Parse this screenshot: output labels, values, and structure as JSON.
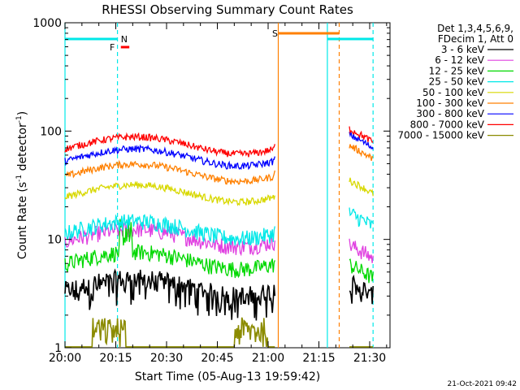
{
  "chart_data": {
    "type": "line",
    "title": "RHESSI Observing Summary Count Rates",
    "xlabel": "Start Time (05-Aug-13 19:59:42)",
    "ylabel_main": "Count Rate (s",
    "ylabel_sup1": "-1",
    "ylabel_mid": " detector",
    "ylabel_sup2": "-1",
    "ylabel_end": ")",
    "yscale": "log",
    "ylim": [
      1,
      1000
    ],
    "xlim_minutes": [
      0,
      96
    ],
    "x_ticks": [
      "20:00",
      "20:15",
      "20:30",
      "20:45",
      "21:00",
      "21:15",
      "21:30"
    ],
    "y_ticks": [
      "1",
      "10",
      "100",
      "1000"
    ],
    "timestamp": "21-Oct-2021 09:42",
    "legend": {
      "header1": "Det 1,3,4,5,6,9,",
      "header2": "FDecim 1, Att 0",
      "placement": "right"
    },
    "series": [
      {
        "name": "3 - 6 keV",
        "color": "#000000",
        "base": 3.0
      },
      {
        "name": "6 - 12 keV",
        "color": "#e040e0",
        "base": 10.5
      },
      {
        "name": "12 - 25 keV",
        "color": "#00d800",
        "base": 6.5
      },
      {
        "name": "25 - 50 keV",
        "color": "#00e8e8",
        "base": 12.5
      },
      {
        "name": "50 - 100 keV",
        "color": "#d8d800",
        "base": 27
      },
      {
        "name": "100 - 300 keV",
        "color": "#ff8000",
        "base": 42
      },
      {
        "name": "300 - 800 keV",
        "color": "#0000ff",
        "base": 58
      },
      {
        "name": "800 - 7000 keV",
        "color": "#ff0000",
        "base": 75
      },
      {
        "name": "7000 - 15000 keV",
        "color": "#8b8b00",
        "base": 1.5
      }
    ],
    "segments": [
      [
        0,
        62
      ],
      [
        84,
        91
      ]
    ],
    "annotations": {
      "N_label": "N",
      "F_label": "F",
      "S_label": "S",
      "night_bars": [
        [
          0,
          15.5
        ],
        [
          77.5,
          91
        ]
      ],
      "flare_bar": [
        16.5,
        19
      ],
      "saa_bar": [
        63,
        81
      ]
    }
  }
}
